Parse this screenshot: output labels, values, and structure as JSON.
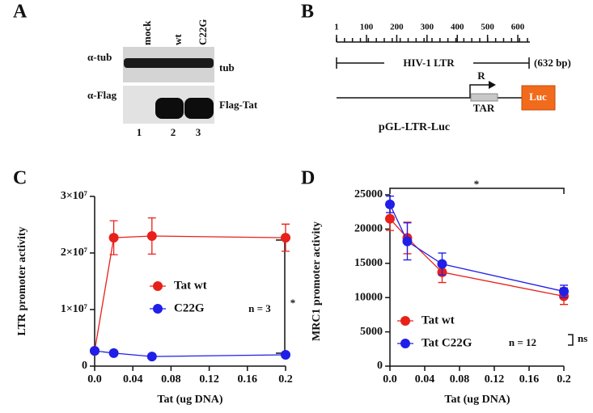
{
  "panel_a": {
    "letter": "A",
    "lanes": [
      "mock",
      "wt",
      "C22G"
    ],
    "rows": [
      {
        "antibody": "α-tub",
        "band": "tub"
      },
      {
        "antibody": "α-Flag",
        "band": "Flag-Tat"
      }
    ],
    "lane_numbers": [
      "1",
      "2",
      "3"
    ]
  },
  "panel_b": {
    "letter": "B",
    "ruler": [
      1,
      100,
      200,
      300,
      400,
      500,
      600
    ],
    "region": "HIV-1 LTR",
    "length": "(632 bp)",
    "start": "R",
    "element": "TAR",
    "reporter": "Luc",
    "construct": "pGL-LTR-Luc"
  },
  "chart_data": [
    {
      "type": "line",
      "panel": "C",
      "ylabel": "LTR promoter activity",
      "xlabel": "Tat (ug DNA)",
      "x": [
        0,
        0.02,
        0.06,
        0.2
      ],
      "xlim": [
        0,
        0.2
      ],
      "xticks": [
        {
          "value": 0,
          "label": "0.0"
        },
        0.04,
        0.08,
        0.12,
        0.16,
        0.2
      ],
      "ylim": [
        0,
        30000000
      ],
      "yticks": [
        0,
        {
          "value": 10000000,
          "label": "1×10⁷"
        },
        {
          "value": 20000000,
          "label": "2×10⁷"
        },
        {
          "value": 30000000,
          "label": "3×10⁷"
        }
      ],
      "series": [
        {
          "name": "Tat wt",
          "color": "#e8201a",
          "values": [
            2700000,
            22700000,
            23000000,
            22700000
          ],
          "errors": [
            0,
            3000000,
            3200000,
            2400000
          ]
        },
        {
          "name": "C22G",
          "color": "#1f1fe8",
          "values": [
            2700000,
            2300000,
            1700000,
            2000000
          ]
        }
      ],
      "annotations": [
        "n = 3",
        "*"
      ]
    },
    {
      "type": "line",
      "panel": "D",
      "ylabel": "MRC1 promoter activity",
      "xlabel": "Tat (ug DNA)",
      "x": [
        0,
        0.02,
        0.06,
        0.2
      ],
      "xlim": [
        0,
        0.2
      ],
      "xticks": [
        {
          "value": 0,
          "label": "0.0"
        },
        0.04,
        0.08,
        0.12,
        0.16,
        0.2
      ],
      "ylim": [
        0,
        25000
      ],
      "yticks": [
        0,
        5000,
        10000,
        15000,
        20000,
        25000
      ],
      "series": [
        {
          "name": "Tat wt",
          "color": "#e8201a",
          "values": [
            21500,
            18700,
            13700,
            10200
          ],
          "errors": [
            1700,
            2300,
            1500,
            1200
          ]
        },
        {
          "name": "Tat C22G",
          "color": "#1f1fe8",
          "values": [
            23600,
            18200,
            14900,
            10900
          ],
          "errors": [
            1200,
            2700,
            1600,
            900
          ]
        }
      ],
      "annotations": [
        "n = 12",
        "*",
        "ns"
      ]
    }
  ]
}
